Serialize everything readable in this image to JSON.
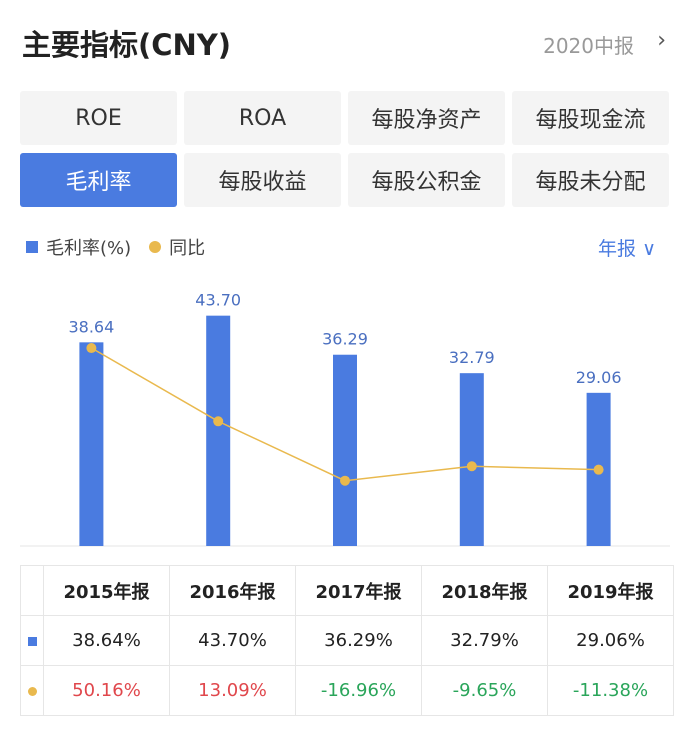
{
  "header": {
    "title": "主要指标(CNY)",
    "period": "2020中报"
  },
  "tabs": [
    {
      "label": "ROE",
      "active": false
    },
    {
      "label": "ROA",
      "active": false
    },
    {
      "label": "每股净资产",
      "active": false
    },
    {
      "label": "每股现金流",
      "active": false
    },
    {
      "label": "毛利率",
      "active": true
    },
    {
      "label": "每股收益",
      "active": false
    },
    {
      "label": "每股公积金",
      "active": false
    },
    {
      "label": "每股未分配",
      "active": false
    }
  ],
  "period_selector": "年报",
  "chart_data": {
    "type": "bar_line",
    "categories": [
      "2015年报",
      "2016年报",
      "2017年报",
      "2018年报",
      "2019年报"
    ],
    "series": [
      {
        "name": "毛利率(%)",
        "color": "#4a7be0",
        "values": [
          38.64,
          43.7,
          36.29,
          32.79,
          29.06
        ],
        "value_labels": [
          "38.64",
          "43.70",
          "36.29",
          "32.79",
          "29.06"
        ]
      },
      {
        "name": "同比",
        "color": "#e9b94e",
        "axis": "y2",
        "values": [
          50.16,
          13.09,
          -16.96,
          -9.65,
          -11.38
        ]
      }
    ],
    "ylim": [
      0,
      48
    ],
    "y2lim": [
      -50,
      78
    ]
  },
  "table": {
    "rows": [
      [
        "38.64%",
        "43.70%",
        "36.29%",
        "32.79%",
        "29.06%"
      ],
      [
        "50.16%",
        "13.09%",
        "-16.96%",
        "-9.65%",
        "-11.38%"
      ]
    ]
  }
}
